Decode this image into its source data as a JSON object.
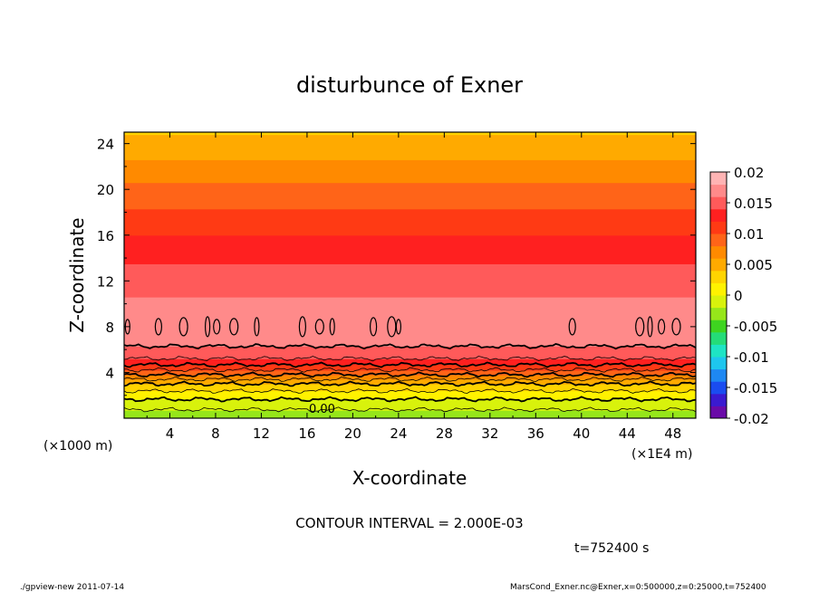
{
  "chart_data": {
    "type": "heatmap",
    "title": "disturbunce of Exner",
    "xlabel": "X-coordinate",
    "ylabel": "Z-coordinate",
    "x_unit_left": "(×1000 m)",
    "x_unit_right": "(×1E4 m)",
    "xlim": [
      0,
      50
    ],
    "ylim": [
      0,
      25
    ],
    "x_ticks": [
      "4",
      "8",
      "12",
      "16",
      "20",
      "24",
      "28",
      "32",
      "36",
      "40",
      "44",
      "48"
    ],
    "y_ticks": [
      "4",
      "8",
      "12",
      "16",
      "20",
      "24"
    ],
    "contour_interval_text": "CONTOUR INTERVAL = 2.000E-03",
    "contour_label": "0.00",
    "time_text": "t=752400 s",
    "colorbar": {
      "range": [
        -0.02,
        0.02
      ],
      "tick_labels": [
        "0.02",
        "0.015",
        "0.01",
        "0.005",
        "0",
        "-0.005",
        "-0.01",
        "-0.015",
        "-0.02"
      ],
      "tick_values": [
        0.02,
        0.015,
        0.01,
        0.005,
        0,
        -0.005,
        -0.01,
        -0.015,
        -0.02
      ],
      "colors": [
        "#6a0aa8",
        "#3a1ad0",
        "#1a4cf0",
        "#1e88f2",
        "#1ec6ee",
        "#1ee4c4",
        "#24dc78",
        "#3ed420",
        "#96e61a",
        "#d8f20c",
        "#fff200",
        "#ffd400",
        "#ffaa00",
        "#ff8a00",
        "#ff6418",
        "#ff3a14",
        "#ff2020",
        "#ff5a5a",
        "#ff8a8a",
        "#ffb4b4"
      ]
    },
    "vertical_profile": [
      {
        "z": 0,
        "v": -0.0035
      },
      {
        "z": 1,
        "v": -0.0015
      },
      {
        "z": 2,
        "v": 0.0008
      },
      {
        "z": 3,
        "v": 0.004
      },
      {
        "z": 4,
        "v": 0.009
      },
      {
        "z": 5,
        "v": 0.0135
      },
      {
        "z": 6,
        "v": 0.0158
      },
      {
        "z": 7,
        "v": 0.0165
      },
      {
        "z": 8,
        "v": 0.0167
      },
      {
        "z": 9,
        "v": 0.0166
      },
      {
        "z": 10,
        "v": 0.0163
      },
      {
        "z": 11,
        "v": 0.0158
      },
      {
        "z": 12,
        "v": 0.0152
      },
      {
        "z": 13,
        "v": 0.0144
      },
      {
        "z": 14,
        "v": 0.0136
      },
      {
        "z": 15,
        "v": 0.0128
      },
      {
        "z": 16,
        "v": 0.012
      },
      {
        "z": 17,
        "v": 0.0111
      },
      {
        "z": 18,
        "v": 0.0102
      },
      {
        "z": 19,
        "v": 0.0094
      },
      {
        "z": 20,
        "v": 0.0085
      },
      {
        "z": 21,
        "v": 0.0076
      },
      {
        "z": 22,
        "v": 0.0066
      },
      {
        "z": 23,
        "v": 0.0056
      },
      {
        "z": 24,
        "v": 0.0047
      },
      {
        "z": 25,
        "v": 0.0038
      }
    ]
  },
  "footer": {
    "left": "./gpview-new   2011-07-14",
    "right": "MarsCond_Exner.nc@Exner,x=0:500000,z=0:25000,t=752400"
  }
}
